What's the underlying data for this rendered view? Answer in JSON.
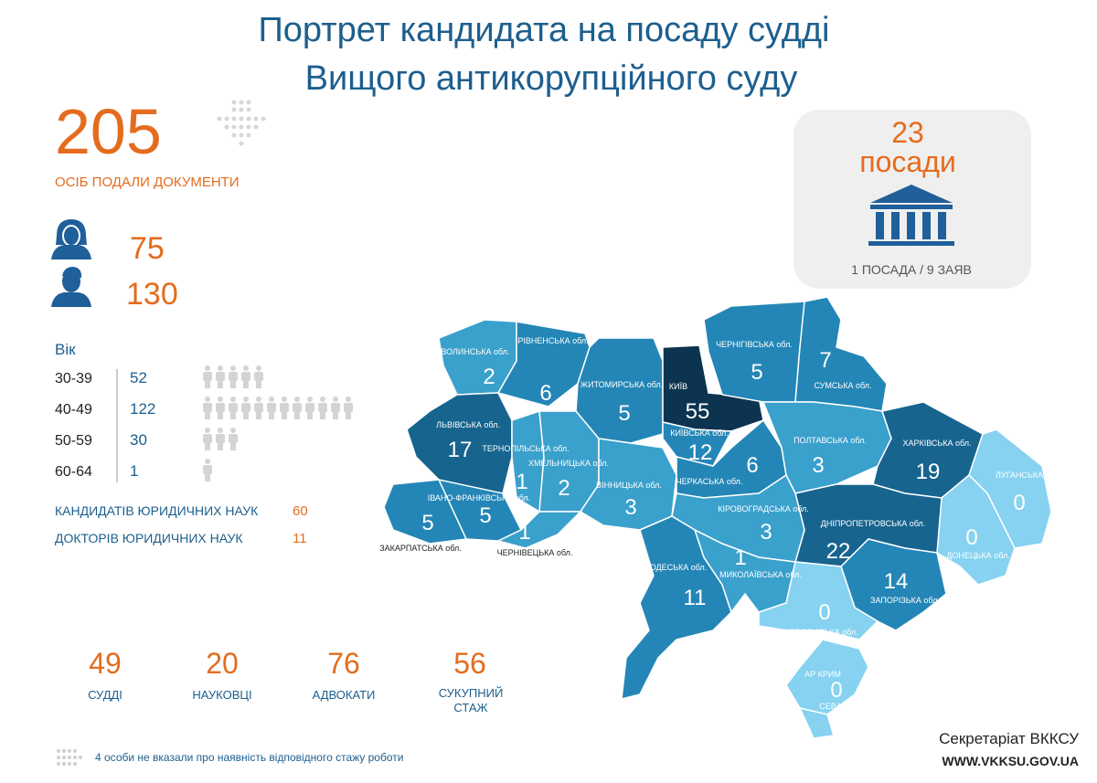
{
  "title": [
    "Портрет кандидата на посаду судді",
    "Вищого антикорупційного суду"
  ],
  "applicants": {
    "count": 205,
    "label": "ОСІБ ПОДАЛИ ДОКУМЕНТИ"
  },
  "gender": {
    "female": 75,
    "male": 130
  },
  "positions": {
    "count": 23,
    "label": "посади",
    "ratio": "1 ПОСАДА / 9 ЗАЯВ"
  },
  "age": {
    "title": "Вік",
    "rows": [
      {
        "range": "30-39",
        "count": 52
      },
      {
        "range": "40-49",
        "count": 122
      },
      {
        "range": "50-59",
        "count": 30
      },
      {
        "range": "60-64",
        "count": 1
      }
    ]
  },
  "degrees": [
    {
      "label": "КАНДИДАТІВ ЮРИДИЧНИХ НАУК",
      "count": 60
    },
    {
      "label": "ДОКТОРІВ ЮРИДИЧНИХ НАУК",
      "count": 11
    }
  ],
  "experience": [
    {
      "count": 49,
      "label": "СУДДІ"
    },
    {
      "count": 20,
      "label": "НАУКОВЦІ"
    },
    {
      "count": 76,
      "label": "АДВОКАТИ"
    },
    {
      "count": 56,
      "label": "СУКУПНИЙ СТАЖ"
    }
  ],
  "note": "4 особи не вказали про наявність відповідного стажу роботи",
  "footer": {
    "org": "Секретаріат ВККСУ",
    "url": "WWW.VKKSU.GOV.UA"
  },
  "regions": [
    {
      "name": "ВОЛИНСЬКА обл.",
      "count": 2
    },
    {
      "name": "РІВНЕНСЬКА обл.",
      "count": 6
    },
    {
      "name": "ЖИТОМИРСЬКА обл.",
      "count": 5
    },
    {
      "name": "КИЇВ",
      "count": 55
    },
    {
      "name": "КИЇВСЬКА обл.",
      "count": 12
    },
    {
      "name": "ЧЕРНІГІВСЬКА обл.",
      "count": 5
    },
    {
      "name": "СУМСЬКА обл.",
      "count": 7
    },
    {
      "name": "ЛЬВІВСЬКА обл.",
      "count": 17
    },
    {
      "name": "ТЕРНОПІЛЬСЬКА обл.",
      "count": 1
    },
    {
      "name": "ХМЕЛЬНИЦЬКА обл.",
      "count": 2
    },
    {
      "name": "ВІННИЦЬКА обл.",
      "count": 3
    },
    {
      "name": "ЧЕРКАСЬКА обл.",
      "count": 6
    },
    {
      "name": "ПОЛТАВСЬКА обл.",
      "count": 3
    },
    {
      "name": "ХАРКІВСЬКА обл.",
      "count": 19
    },
    {
      "name": "ЛУГАНСЬКА обл.",
      "count": 0
    },
    {
      "name": "ДОНЕЦЬКА обл.",
      "count": 0
    },
    {
      "name": "ДНІПРОПЕТРОВСЬКА обл.",
      "count": 22
    },
    {
      "name": "КІРОВОГРАДСЬКА обл.",
      "count": 3
    },
    {
      "name": "ЗАКАРПАТСЬКА обл.",
      "count": 5
    },
    {
      "name": "ІВАНО-ФРАНКІВСЬКА обл.",
      "count": 5
    },
    {
      "name": "ЧЕРНІВЕЦЬКА обл.",
      "count": 1
    },
    {
      "name": "ОДЕСЬКА обл.",
      "count": 11
    },
    {
      "name": "МИКОЛАЇВСЬКА обл.",
      "count": 1
    },
    {
      "name": "ЗАПОРІЗЬКА обл.",
      "count": 14
    },
    {
      "name": "ХЕРСОНСЬКА обл.",
      "count": 0
    },
    {
      "name": "АР КРИМ",
      "count": 0
    },
    {
      "name": "СЕВАСТОПОЛЬ",
      "count": 0
    }
  ]
}
